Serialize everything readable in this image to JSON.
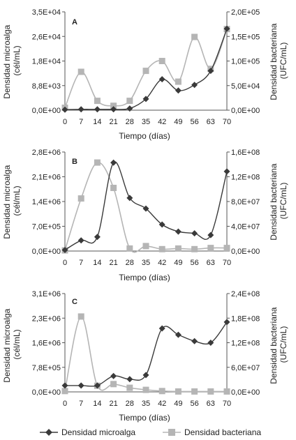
{
  "chart_data": [
    {
      "type": "line",
      "panel_label": "A",
      "x": [
        0,
        7,
        14,
        21,
        28,
        35,
        42,
        49,
        56,
        63,
        70
      ],
      "xlabel": "Tiempo (días)",
      "ylabel_left": [
        "Densidad microalga",
        "(cél/mL)"
      ],
      "ylabel_right": [
        "Densidad bacteriana",
        "(UFC/mL)"
      ],
      "yticks_left": [
        "0,0E+00",
        "8,8E+03",
        "1,8E+04",
        "2,6E+04",
        "3,5E+04"
      ],
      "yticks_right": [
        "0,0E+00",
        "5,0E+04",
        "1,0E+05",
        "1,5E+05",
        "2,0E+05"
      ],
      "ylim_left": [
        0,
        35000
      ],
      "ylim_right": [
        0,
        200000
      ],
      "series": [
        {
          "name": "Densidad microalga",
          "axis": "left",
          "color": "#3a3a3a",
          "marker": "diamond",
          "values": [
            200,
            300,
            300,
            300,
            600,
            4000,
            11000,
            7000,
            9000,
            14000,
            29000
          ]
        },
        {
          "name": "Densidad bacteriana",
          "axis": "right",
          "color": "#b5b5b5",
          "marker": "square",
          "values": [
            5000,
            78000,
            19000,
            9000,
            19000,
            80000,
            100000,
            58000,
            149000,
            84000,
            165000
          ]
        }
      ]
    },
    {
      "type": "line",
      "panel_label": "B",
      "x": [
        0,
        7,
        14,
        21,
        28,
        35,
        42,
        49,
        56,
        63,
        70
      ],
      "xlabel": "Tiempo (días)",
      "ylabel_left": [
        "Densidad microalga",
        "(cél/mL)"
      ],
      "ylabel_right": [
        "Densidad bacteriana",
        "(UFC/mL)"
      ],
      "yticks_left": [
        "0,0E+00",
        "7,0E+05",
        "1,4E+06",
        "2,1E+06",
        "2,8E+06"
      ],
      "yticks_right": [
        "0,0E+00",
        "4,0E+07",
        "8,0E+07",
        "1,2E+08",
        "1,6E+08"
      ],
      "ylim_left": [
        0,
        2800000
      ],
      "ylim_right": [
        0,
        160000000
      ],
      "series": [
        {
          "name": "Densidad microalga",
          "axis": "left",
          "color": "#3a3a3a",
          "marker": "diamond",
          "values": [
            30000,
            300000,
            400000,
            2500000,
            1500000,
            1200000,
            750000,
            550000,
            500000,
            450000,
            2250000
          ]
        },
        {
          "name": "Densidad bacteriana",
          "axis": "right",
          "color": "#b5b5b5",
          "marker": "square",
          "values": [
            1000000,
            85000000,
            143000000,
            102000000,
            4000000,
            8000000,
            3000000,
            4000000,
            3000000,
            5000000,
            5000000
          ]
        }
      ]
    },
    {
      "type": "line",
      "panel_label": "C",
      "x": [
        0,
        7,
        14,
        21,
        28,
        35,
        42,
        49,
        56,
        63,
        70
      ],
      "xlabel": "Tiempo (días)",
      "ylabel_left": [
        "Densidad microalga",
        "(cél/mL)"
      ],
      "ylabel_right": [
        "Densidad bacteriana",
        "(UFC/mL)"
      ],
      "yticks_left": [
        "0,0E+00",
        "7,8E+05",
        "1,6E+06",
        "2,3E+06",
        "3,1E+06"
      ],
      "yticks_right": [
        "0,0E+00",
        "6,0E+07",
        "1,2E+08",
        "1,8E+08",
        "2,4E+08"
      ],
      "ylim_left": [
        0,
        3100000
      ],
      "ylim_right": [
        0,
        240000000
      ],
      "series": [
        {
          "name": "Densidad microalga",
          "axis": "left",
          "color": "#3a3a3a",
          "marker": "diamond",
          "values": [
            200000,
            200000,
            200000,
            500000,
            400000,
            530000,
            2000000,
            1800000,
            1600000,
            1550000,
            2200000
          ]
        },
        {
          "name": "Densidad bacteriana",
          "axis": "right",
          "color": "#b5b5b5",
          "marker": "square",
          "values": [
            2000000,
            184000000,
            15000000,
            19000000,
            10000000,
            5000000,
            2000000,
            1000000,
            1000000,
            1000000,
            1000000
          ]
        }
      ]
    }
  ],
  "legend": [
    {
      "label": "Densidad microalga",
      "marker": "diamond",
      "color": "#3a3a3a"
    },
    {
      "label": "Densidad bacteriana",
      "marker": "square",
      "color": "#b5b5b5"
    }
  ],
  "legend_position": "bottom-center"
}
